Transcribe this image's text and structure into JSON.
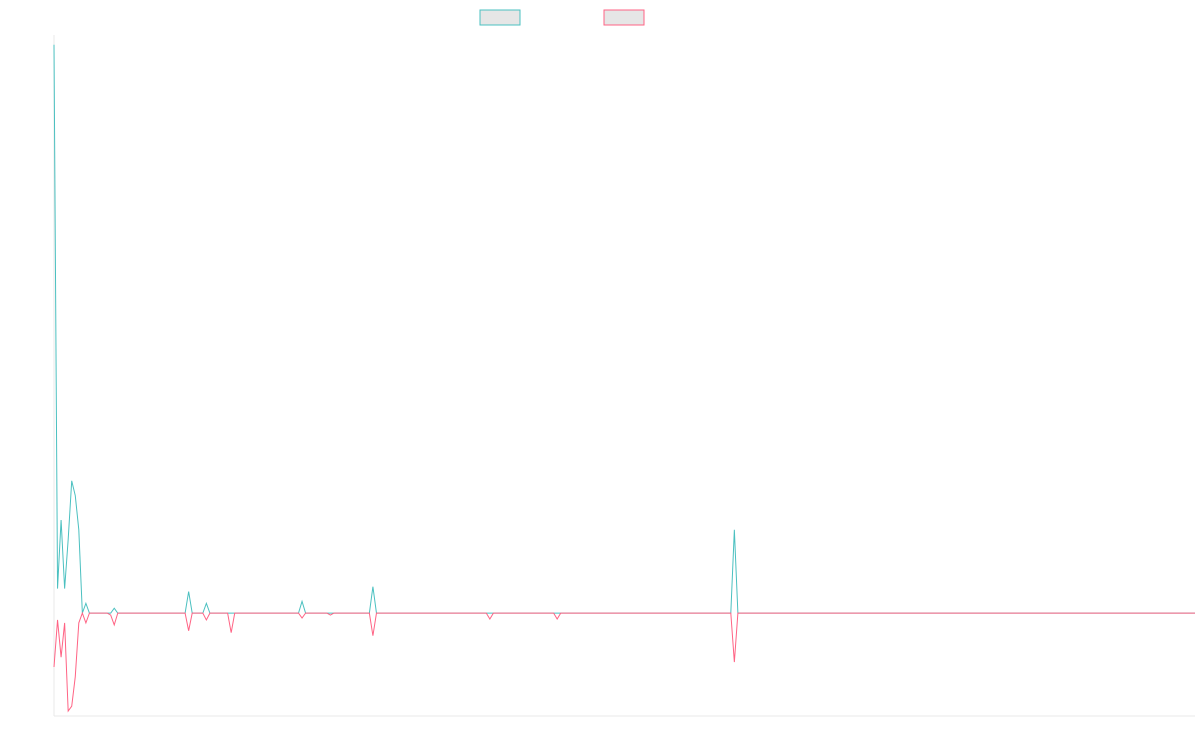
{
  "chart_data": {
    "type": "line",
    "title": "",
    "xlabel": "",
    "ylabel": "",
    "x_count": 323,
    "ylim": [
      -1.05,
      5.9
    ],
    "grid": false,
    "legend_position": "top-center",
    "legend": [
      {
        "label": "",
        "color": "#4bc0c0",
        "fill": "#e6e6e6"
      },
      {
        "label": "",
        "color": "#ff6384",
        "fill": "#e6e6e6"
      }
    ],
    "series": [
      {
        "color": "#4bc0c0",
        "baseline": 0,
        "points": [
          [
            0,
            5.8
          ],
          [
            1,
            0.25
          ],
          [
            2,
            0.95
          ],
          [
            3,
            0.25
          ],
          [
            4,
            0.75
          ],
          [
            5,
            1.35
          ],
          [
            6,
            1.2
          ],
          [
            7,
            0.85
          ],
          [
            8,
            0
          ],
          [
            9,
            0.1
          ],
          [
            10,
            0
          ],
          [
            16,
            0
          ],
          [
            17,
            0.05
          ],
          [
            18,
            0
          ],
          [
            37,
            0
          ],
          [
            38,
            0.22
          ],
          [
            39,
            0
          ],
          [
            42,
            0
          ],
          [
            43,
            0.1
          ],
          [
            44,
            0
          ],
          [
            69,
            0
          ],
          [
            70,
            0.12
          ],
          [
            71,
            0
          ],
          [
            89,
            0
          ],
          [
            90,
            0.27
          ],
          [
            91,
            0
          ],
          [
            191,
            0
          ],
          [
            192,
            0.85
          ],
          [
            193,
            0
          ],
          [
            322,
            0
          ]
        ]
      },
      {
        "color": "#ff6384",
        "baseline": 0,
        "points": [
          [
            0,
            -0.55
          ],
          [
            1,
            -0.07
          ],
          [
            2,
            -0.45
          ],
          [
            3,
            -0.1
          ],
          [
            4,
            -1.0
          ],
          [
            5,
            -0.95
          ],
          [
            6,
            -0.65
          ],
          [
            7,
            -0.1
          ],
          [
            8,
            0
          ],
          [
            9,
            -0.1
          ],
          [
            10,
            0
          ],
          [
            15,
            0
          ],
          [
            16,
            -0.02
          ],
          [
            17,
            -0.12
          ],
          [
            18,
            0
          ],
          [
            37,
            0
          ],
          [
            38,
            -0.18
          ],
          [
            39,
            0
          ],
          [
            42,
            0
          ],
          [
            43,
            -0.07
          ],
          [
            44,
            0
          ],
          [
            49,
            0
          ],
          [
            50,
            -0.2
          ],
          [
            51,
            0
          ],
          [
            69,
            0
          ],
          [
            70,
            -0.05
          ],
          [
            71,
            0
          ],
          [
            77,
            0
          ],
          [
            78,
            -0.02
          ],
          [
            79,
            0
          ],
          [
            89,
            0
          ],
          [
            90,
            -0.23
          ],
          [
            91,
            0
          ],
          [
            122,
            0
          ],
          [
            123,
            -0.06
          ],
          [
            124,
            0
          ],
          [
            141,
            0
          ],
          [
            142,
            -0.06
          ],
          [
            143,
            0
          ],
          [
            191,
            0
          ],
          [
            192,
            -0.5
          ],
          [
            193,
            0
          ],
          [
            322,
            0
          ]
        ]
      }
    ]
  }
}
